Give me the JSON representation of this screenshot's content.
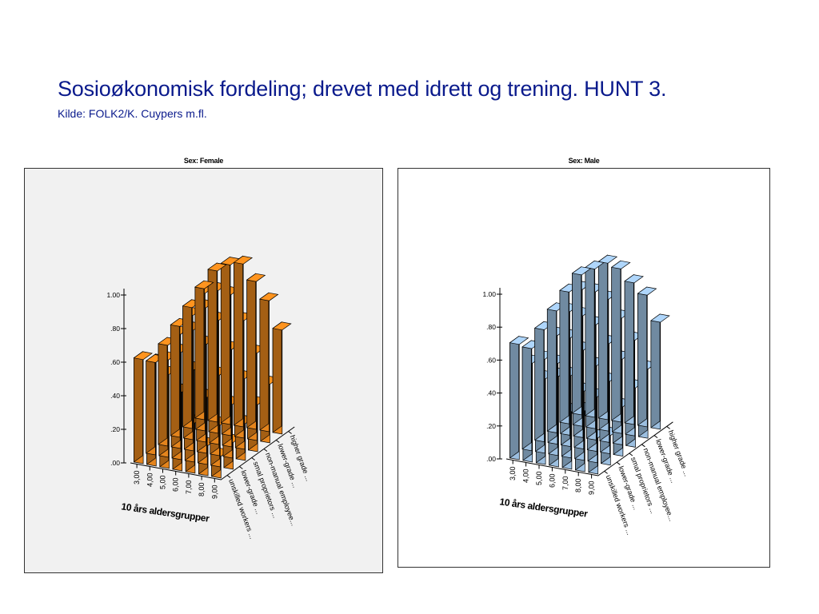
{
  "slide": {
    "title": "Sosioøkonomisk fordeling;  drevet med idrett og trening. HUNT 3.",
    "subtitle": "Kilde: FOLK2/K. Cuypers m.fl."
  },
  "colors": {
    "title": "#0a1a8c",
    "female_bar": "#e4841c",
    "male_bar": "#9cbfe0"
  },
  "chart_data": [
    {
      "type": "bar3d",
      "title": "Sex: Female",
      "xlabel": "10 års aldersgrupper",
      "ylabel": "",
      "ylim": [
        0,
        1.0
      ],
      "yticks": [
        ".00",
        ".20",
        ".40",
        ".60",
        ".80",
        "1.00"
      ],
      "x_categories": [
        "3,00",
        "4,00",
        "5,00",
        "6,00",
        "7,00",
        "8,00",
        "9,00"
      ],
      "z_categories": [
        "unskilled workers ...",
        "lower-grade ...",
        "smal proprietors ...",
        "non-manual employee...",
        "lower-grade ...",
        "higher grade ..."
      ],
      "values": [
        [
          0.62,
          0.55,
          0.6,
          0.66,
          0.72,
          0.78
        ],
        [
          0.62,
          0.58,
          0.68,
          0.74,
          0.82,
          0.9
        ],
        [
          0.56,
          0.64,
          0.72,
          0.8,
          0.85,
          0.95
        ],
        [
          0.47,
          0.55,
          0.65,
          0.74,
          0.84,
          0.97
        ],
        [
          0.3,
          0.4,
          0.48,
          0.58,
          0.7,
          0.88
        ],
        [
          0.18,
          0.25,
          0.32,
          0.42,
          0.52,
          0.78
        ],
        [
          0.13,
          0.16,
          0.22,
          0.28,
          0.35,
          0.62
        ]
      ]
    },
    {
      "type": "bar3d",
      "title": "Sex: Male",
      "xlabel": "10 års aldersgrupper",
      "ylabel": "",
      "ylim": [
        0,
        1.0
      ],
      "yticks": [
        ".00",
        ".20",
        ".40",
        ".60",
        ".80",
        "1.00"
      ],
      "x_categories": [
        "3,00",
        "4,00",
        "5,00",
        "6,00",
        "7,00",
        "8,00",
        "9,00"
      ],
      "z_categories": [
        "unskilled workers ...",
        "lower-grade ...",
        "smal proprietors ...",
        "non-manual employee...",
        "lower-grade ...",
        "higher grade ..."
      ],
      "values": [
        [
          0.7,
          0.62,
          0.68,
          0.74,
          0.8,
          0.85
        ],
        [
          0.6,
          0.57,
          0.66,
          0.75,
          0.83,
          0.9
        ],
        [
          0.52,
          0.56,
          0.66,
          0.74,
          0.83,
          0.95
        ],
        [
          0.55,
          0.5,
          0.6,
          0.7,
          0.8,
          0.93
        ],
        [
          0.35,
          0.42,
          0.52,
          0.6,
          0.7,
          0.86
        ],
        [
          0.37,
          0.4,
          0.44,
          0.52,
          0.58,
          0.8
        ],
        [
          0.22,
          0.18,
          0.3,
          0.36,
          0.42,
          0.65
        ]
      ]
    }
  ]
}
